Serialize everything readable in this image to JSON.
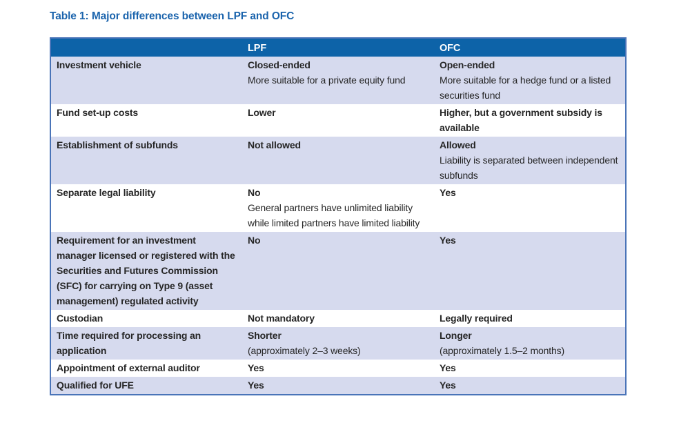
{
  "title": "Table 1: Major differences between LPF and OFC",
  "colors": {
    "title_text": "#1b64ad",
    "header_bg": "#0d63a8",
    "header_text": "#ffffff",
    "row_alt_bg": "#d6daee",
    "row_bg": "#ffffff",
    "table_border": "#4a74b8",
    "body_text": "#262626"
  },
  "table": {
    "headers": {
      "col1": "",
      "col2": "LPF",
      "col3": "OFC"
    },
    "rows": [
      {
        "label": "Investment vehicle",
        "lpf": [
          {
            "text": "Closed-ended",
            "bold": true
          },
          {
            "text": "More suitable for a private equity fund",
            "bold": false
          }
        ],
        "ofc": [
          {
            "text": "Open-ended",
            "bold": true
          },
          {
            "text": "More suitable for a hedge fund or a listed securities fund",
            "bold": false
          }
        ]
      },
      {
        "label": "Fund set-up costs",
        "lpf": [
          {
            "text": "Lower",
            "bold": true
          }
        ],
        "ofc": [
          {
            "text": "Higher, but a government subsidy is available",
            "bold": true
          }
        ]
      },
      {
        "label": "Establishment of subfunds",
        "lpf": [
          {
            "text": "Not allowed",
            "bold": true
          }
        ],
        "ofc": [
          {
            "text": "Allowed",
            "bold": true
          },
          {
            "text": "Liability is separated between independent subfunds",
            "bold": false
          }
        ]
      },
      {
        "label": "Separate legal liability",
        "lpf": [
          {
            "text": "No",
            "bold": true
          },
          {
            "text": "General partners have unlimited liability while limited partners have limited liability",
            "bold": false
          }
        ],
        "ofc": [
          {
            "text": "Yes",
            "bold": true
          }
        ]
      },
      {
        "label": "Requirement for an investment manager licensed or registered with the Securities and Futures Commission (SFC) for carrying on Type 9 (asset management) regulated activity",
        "lpf": [
          {
            "text": "No",
            "bold": true
          }
        ],
        "ofc": [
          {
            "text": "Yes",
            "bold": true
          }
        ]
      },
      {
        "label": "Custodian",
        "lpf": [
          {
            "text": "Not mandatory",
            "bold": true
          }
        ],
        "ofc": [
          {
            "text": "Legally required",
            "bold": true
          }
        ]
      },
      {
        "label": "Time required for processing an application",
        "lpf": [
          {
            "text": "Shorter",
            "bold": true
          },
          {
            "text": "(approximately 2–3 weeks)",
            "bold": false
          }
        ],
        "ofc": [
          {
            "text": "Longer",
            "bold": true
          },
          {
            "text": "(approximately 1.5–2 months)",
            "bold": false
          }
        ]
      },
      {
        "label": "Appointment of external auditor",
        "lpf": [
          {
            "text": "Yes",
            "bold": true
          }
        ],
        "ofc": [
          {
            "text": "Yes",
            "bold": true
          }
        ]
      },
      {
        "label": "Qualified for UFE",
        "lpf": [
          {
            "text": "Yes",
            "bold": true
          }
        ],
        "ofc": [
          {
            "text": "Yes",
            "bold": true
          }
        ]
      }
    ]
  }
}
